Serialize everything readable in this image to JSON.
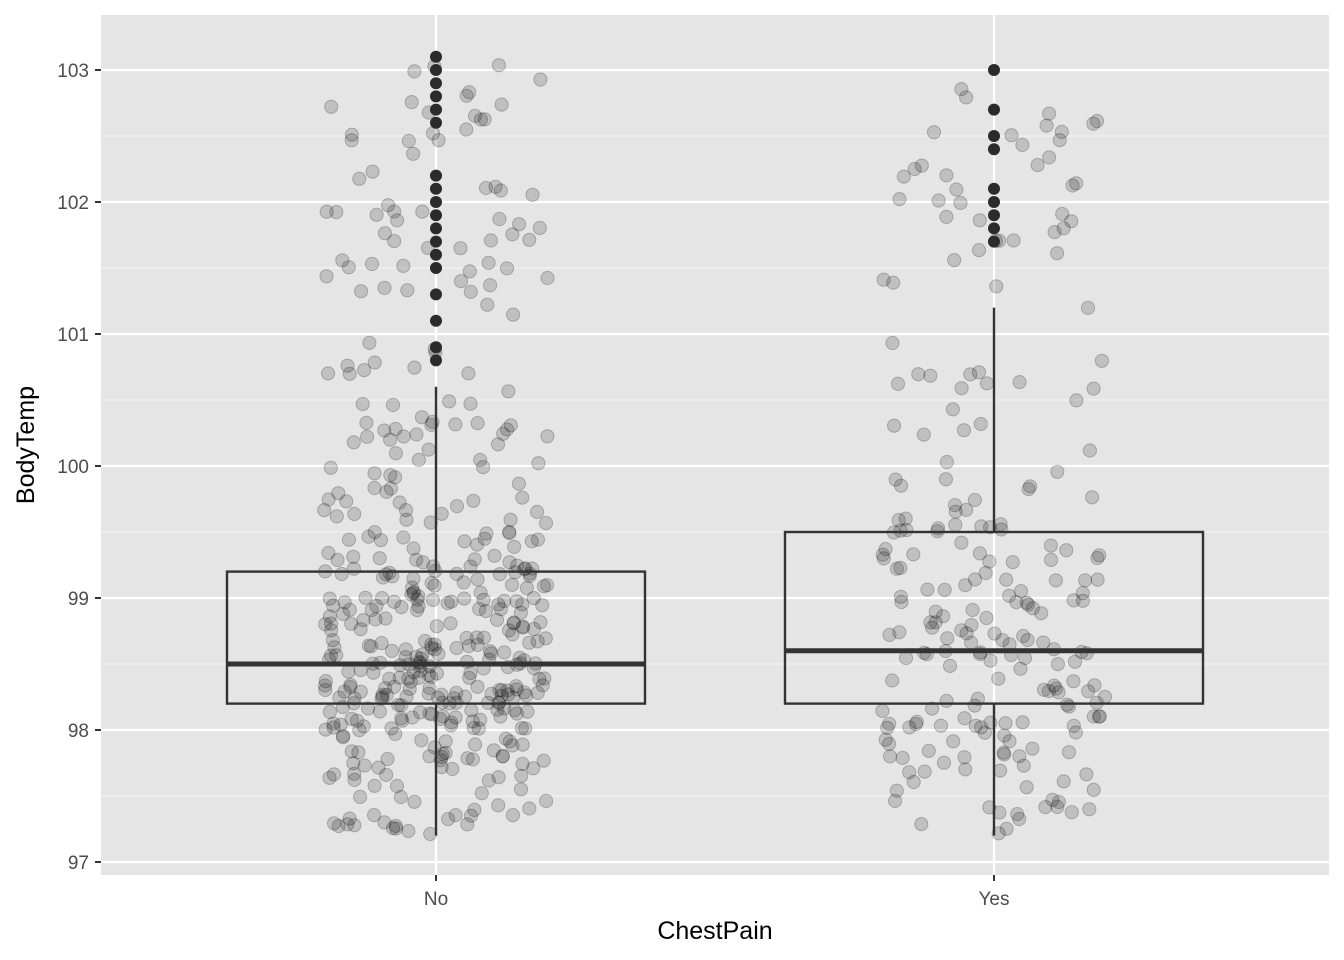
{
  "chart_data": {
    "type": "box",
    "xlabel": "ChestPain",
    "ylabel": "BodyTemp",
    "categories": [
      "No",
      "Yes"
    ],
    "ylim": [
      96.9,
      103.3
    ],
    "yticks": [
      97,
      98,
      99,
      100,
      101,
      102,
      103
    ],
    "grid": true,
    "boxes": [
      {
        "category": "No",
        "q1": 98.2,
        "median": 98.5,
        "q3": 99.2,
        "whisker_low": 97.2,
        "whisker_high": 100.6,
        "outliers": [
          100.8,
          100.9,
          101.1,
          101.3,
          101.5,
          101.6,
          101.7,
          101.8,
          101.9,
          102.0,
          102.1,
          102.2,
          102.6,
          102.7,
          102.8,
          102.9,
          103.0,
          103.1
        ]
      },
      {
        "category": "Yes",
        "q1": 98.2,
        "median": 98.6,
        "q3": 99.5,
        "whisker_low": 97.2,
        "whisker_high": 101.2,
        "outliers": [
          101.7,
          101.8,
          101.9,
          102.0,
          102.1,
          102.4,
          102.5,
          102.7,
          103.0
        ]
      }
    ],
    "jitter_points": {
      "No": {
        "count": 450,
        "y_range": [
          97.2,
          103.1
        ],
        "y_quantiles": [
          97.2,
          97.7,
          98.0,
          98.2,
          98.35,
          98.5,
          98.7,
          98.95,
          99.2,
          99.8,
          100.6,
          101.8,
          103.1
        ]
      },
      "Yes": {
        "count": 230,
        "y_range": [
          97.2,
          103.0
        ],
        "y_quantiles": [
          97.2,
          97.7,
          98.0,
          98.2,
          98.4,
          98.6,
          98.85,
          99.1,
          99.5,
          100.0,
          100.7,
          101.9,
          103.0
        ]
      }
    },
    "colors": {
      "panel": "#E5E5E5",
      "grid": "#FFFFFF",
      "box_line": "#333333",
      "jitter_fill": "#000000",
      "outlier": "#2b2b2b"
    }
  }
}
